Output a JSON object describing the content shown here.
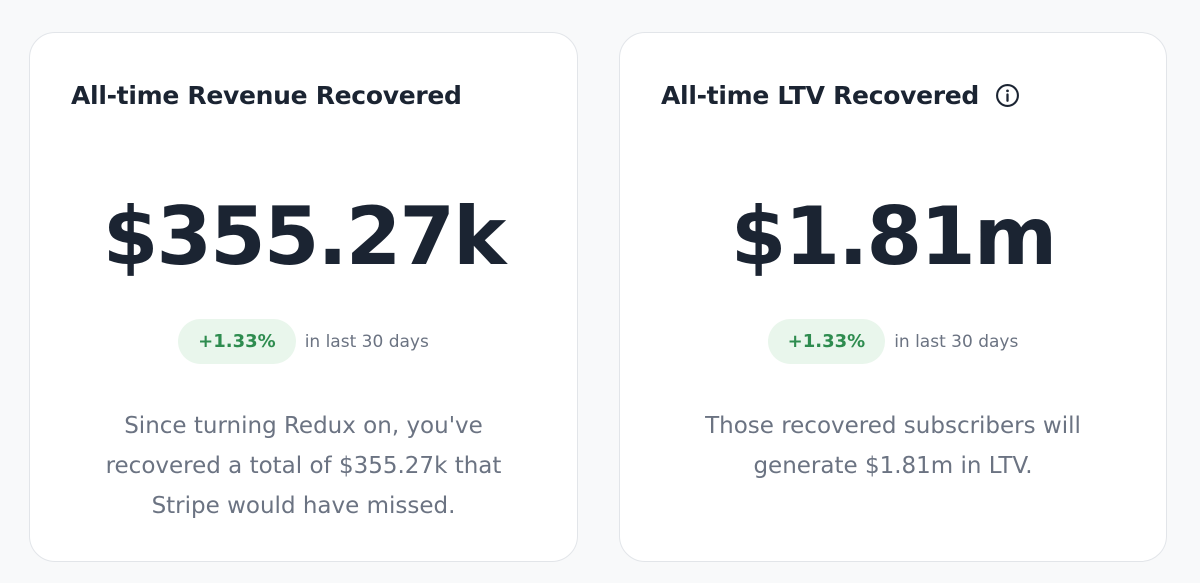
{
  "cards": [
    {
      "title": "All-time Revenue Recovered",
      "value": "$355.27k",
      "delta": "+1.33%",
      "delta_label": "in last 30 days",
      "description": "Since turning Redux on, you've recovered a total of $355.27k that Stripe would have missed."
    },
    {
      "title": "All-time LTV Recovered",
      "info_icon": "info-circle-icon",
      "value": "$1.81m",
      "delta": "+1.33%",
      "delta_label": "in last 30 days",
      "description": "Those recovered subscribers will generate $1.81m in LTV."
    }
  ],
  "colors": {
    "text_primary": "#1b2432",
    "text_secondary": "#6b7382",
    "positive_text": "#2e8c4f",
    "positive_bg": "#e9f6ec",
    "card_border": "#e2e5e9",
    "page_bg": "#f8f9fa"
  }
}
